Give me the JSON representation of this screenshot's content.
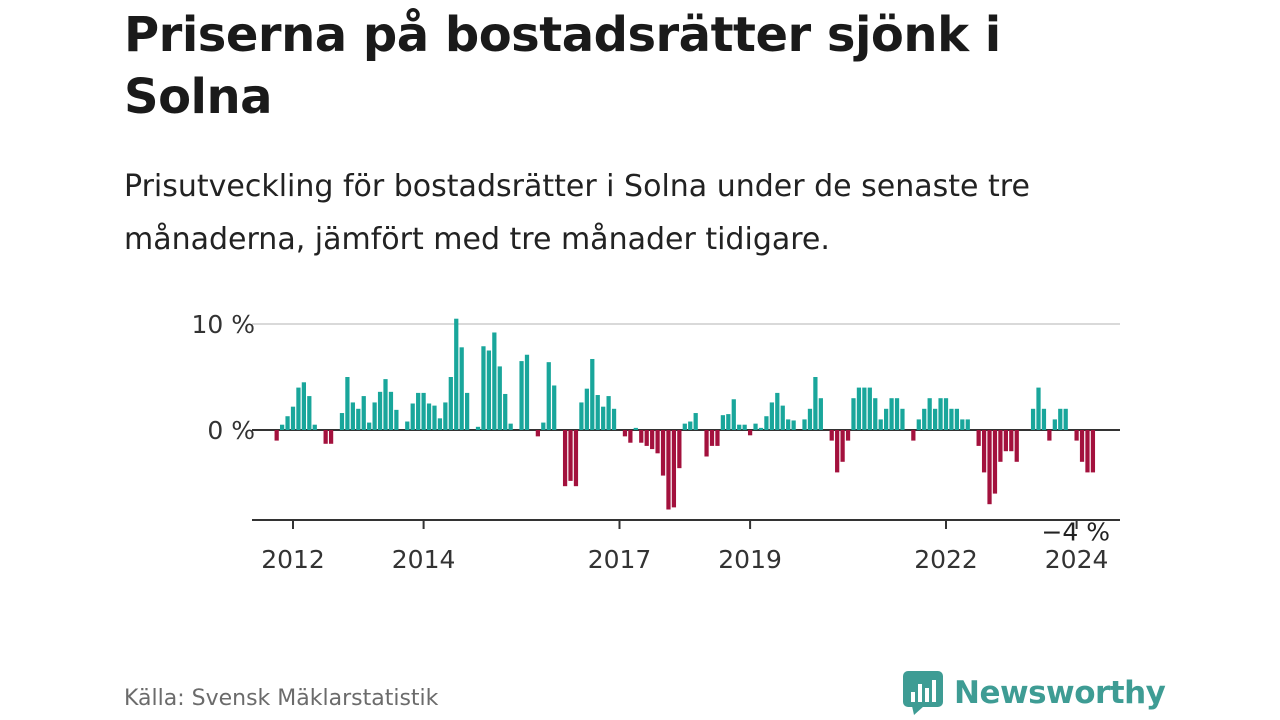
{
  "title": "Priserna på bostadsrätter sjönk i Solna",
  "subtitle": "Prisutveckling för bostadsrätter i Solna under de senaste tre månaderna, jämfört med tre månader tidigare.",
  "source": "Källa: Svensk Mäklarstatistik",
  "brand": {
    "name": "Newsworthy",
    "icon": "newsworthy-logo-icon"
  },
  "colors": {
    "positive": "#19a69b",
    "negative": "#a3113d",
    "grid": "#d9d9d9",
    "axis": "#333333",
    "brand": "#3e9c94"
  },
  "chart_data": {
    "type": "bar",
    "title": "Priserna på bostadsrätter sjönk i Solna",
    "xlabel": "",
    "ylabel": "",
    "ylim": [
      -8.5,
      10.5
    ],
    "y_ticks": [
      {
        "value": 10,
        "label": "10 %"
      },
      {
        "value": 0,
        "label": "0 %"
      }
    ],
    "x_ticks": [
      {
        "value": 2012.0,
        "label": "2012"
      },
      {
        "value": 2014.0,
        "label": "2014"
      },
      {
        "value": 2017.0,
        "label": "2017"
      },
      {
        "value": 2019.0,
        "label": "2019"
      },
      {
        "value": 2022.0,
        "label": "2022"
      },
      {
        "value": 2024.0,
        "label": "2024"
      }
    ],
    "x_start": 2011.75,
    "step": 0.0833333,
    "values": [
      -1.0,
      0.5,
      1.3,
      2.2,
      4.0,
      4.5,
      3.2,
      0.5,
      0.0,
      -1.3,
      -1.3,
      0.0,
      1.6,
      5.0,
      2.6,
      2.0,
      3.2,
      0.7,
      2.6,
      3.6,
      4.8,
      3.6,
      1.9,
      0.0,
      0.8,
      2.5,
      3.5,
      3.5,
      2.5,
      2.3,
      1.1,
      2.6,
      5.0,
      10.5,
      7.8,
      3.5,
      0.0,
      0.3,
      7.9,
      7.5,
      9.2,
      6.0,
      3.4,
      0.6,
      0.0,
      6.5,
      7.1,
      0.0,
      -0.6,
      0.7,
      6.4,
      4.2,
      0.0,
      -5.3,
      -4.8,
      -5.3,
      2.6,
      3.9,
      6.7,
      3.3,
      2.2,
      3.2,
      2.0,
      0.0,
      -0.6,
      -1.2,
      0.2,
      -1.2,
      -1.5,
      -1.8,
      -2.2,
      -4.3,
      -7.5,
      -7.3,
      -3.6,
      0.6,
      0.8,
      1.6,
      0.0,
      -2.5,
      -1.5,
      -1.5,
      1.4,
      1.5,
      2.9,
      0.5,
      0.5,
      -0.5,
      0.6,
      0.2,
      1.3,
      2.6,
      3.5,
      2.3,
      1.0,
      0.9,
      0.0,
      1.0,
      2.0,
      5.0,
      3.0,
      0.0,
      -1.0,
      -4.0,
      -3.0,
      -1.0,
      3.0,
      4.0,
      4.0,
      4.0,
      3.0,
      1.0,
      2.0,
      3.0,
      3.0,
      2.0,
      0.0,
      -1.0,
      1.0,
      2.0,
      3.0,
      2.0,
      3.0,
      3.0,
      2.0,
      2.0,
      1.0,
      1.0,
      0.0,
      -1.5,
      -4.0,
      -7.0,
      -6.0,
      -3.0,
      -2.0,
      -2.0,
      -3.0,
      0.0,
      0.0,
      2.0,
      4.0,
      2.0,
      -1.0,
      1.0,
      2.0,
      2.0,
      0.0,
      -1.0,
      -3.0,
      -4.0,
      -4.0
    ],
    "annotations": [
      {
        "label": "−4 %",
        "at": "last"
      }
    ]
  }
}
